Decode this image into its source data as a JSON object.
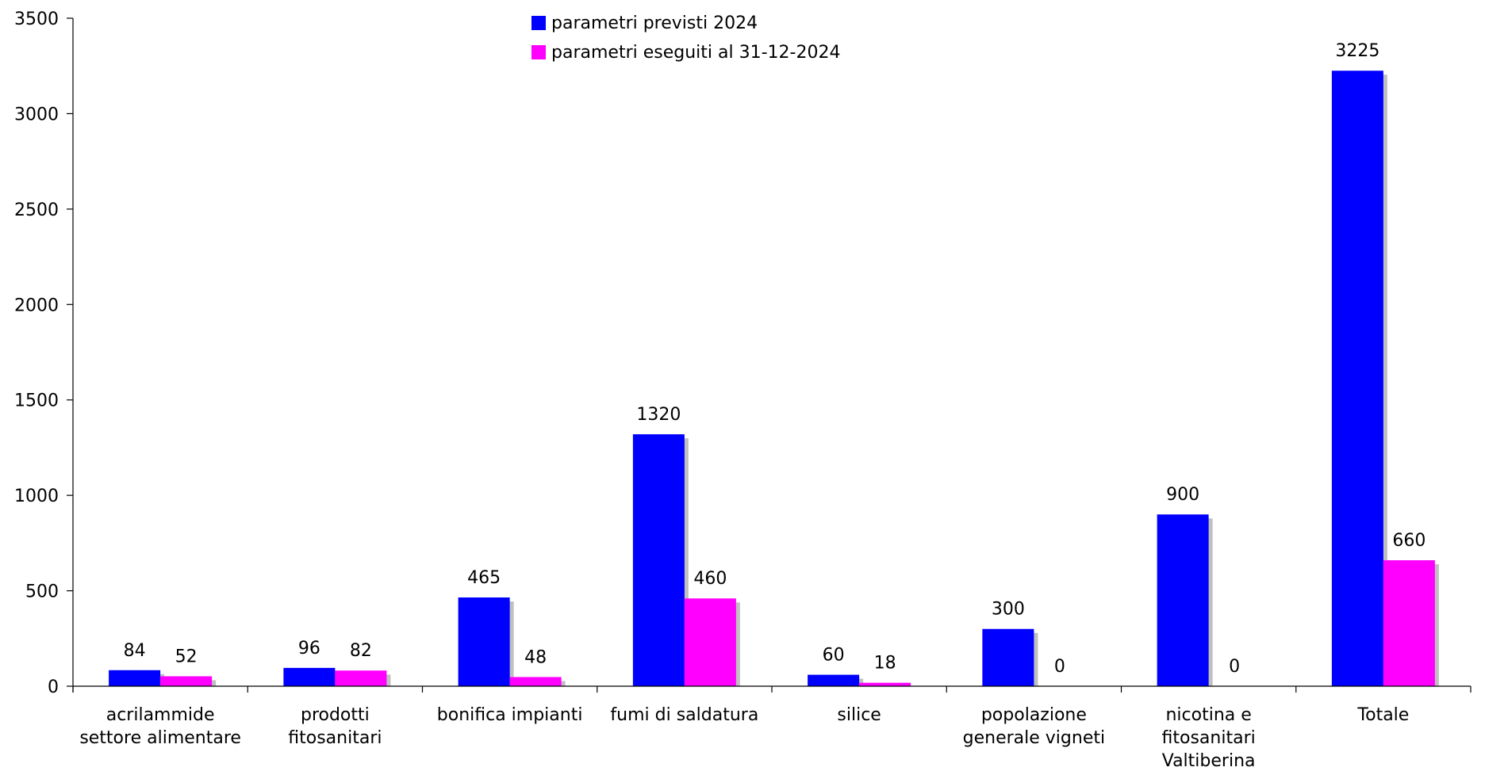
{
  "chart_data": {
    "type": "bar",
    "title": "",
    "xlabel": "",
    "ylabel": "",
    "ylim": [
      0,
      3500
    ],
    "yticks": [
      "0",
      "500",
      "1000",
      "1500",
      "2000",
      "2500",
      "3000",
      "3500"
    ],
    "ytick_values": [
      0,
      500,
      1000,
      1500,
      2000,
      2500,
      3000,
      3500
    ],
    "grid": false,
    "legend_position": "top-center",
    "categories": [
      [
        "acrilammide",
        "settore alimentare"
      ],
      [
        "prodotti",
        "fitosanitari"
      ],
      [
        "bonifica impianti"
      ],
      [
        "fumi di saldatura"
      ],
      [
        "silice"
      ],
      [
        "popolazione",
        "generale vigneti"
      ],
      [
        "nicotina e",
        "fitosanitari",
        "Valtiberina"
      ],
      [
        "Totale"
      ]
    ],
    "series": [
      {
        "name": "parametri previsti 2024",
        "color": "#0000ff",
        "values": [
          84,
          96,
          465,
          1320,
          60,
          300,
          900,
          3225
        ],
        "labels": [
          "84",
          "96",
          "465",
          "1320",
          "60",
          "300",
          "900",
          "3225"
        ]
      },
      {
        "name": "parametri eseguiti al 31-12-2024",
        "color": "#ff00ff",
        "values": [
          52,
          82,
          48,
          460,
          18,
          0,
          0,
          660
        ],
        "labels": [
          "52",
          "82",
          "48",
          "460",
          "18",
          "0",
          "0",
          "660"
        ]
      }
    ],
    "shadow_color": "#c0c0c0"
  }
}
